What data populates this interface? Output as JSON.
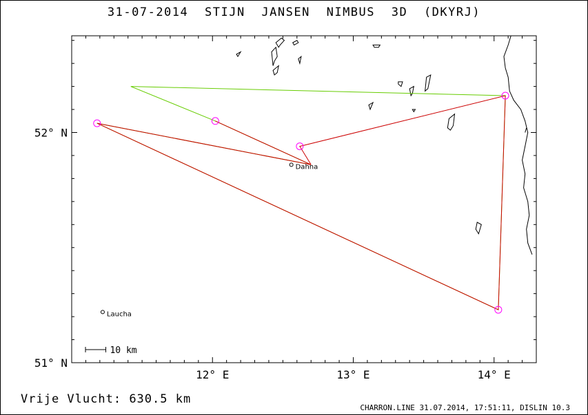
{
  "header": {
    "date": "31-07-2014",
    "pilot": "STIJN JANSEN",
    "glider": "NIMBUS 3D (DKYRJ)"
  },
  "map": {
    "lon_range": [
      11.0,
      14.3
    ],
    "lat_range": [
      51.0,
      52.42
    ],
    "y_ticks": [
      {
        "lat": 52.0,
        "label": "52° N"
      },
      {
        "lat": 51.0,
        "label": "51° N"
      }
    ],
    "x_ticks": [
      {
        "lon": 12.0,
        "label": "12° E"
      },
      {
        "lon": 13.0,
        "label": "13° E"
      },
      {
        "lon": 14.0,
        "label": "14° E"
      }
    ],
    "colors": {
      "track": "#0000cc",
      "task_red": "#cc0000",
      "task_green": "#66cc00",
      "turnpoint": "#ff00ff",
      "border": "#000000"
    },
    "towns": [
      {
        "name": "Dahna",
        "lon": 12.56,
        "lat": 51.86
      },
      {
        "name": "Laucha",
        "lon": 11.22,
        "lat": 51.22
      }
    ],
    "turnpoints": [
      {
        "lon": 11.18,
        "lat": 52.04
      },
      {
        "lon": 12.02,
        "lat": 52.05
      },
      {
        "lon": 12.62,
        "lat": 51.94
      },
      {
        "lon": 14.08,
        "lat": 52.16
      },
      {
        "lon": 14.03,
        "lat": 51.23
      }
    ],
    "red_route": [
      [
        12.7,
        51.86
      ],
      [
        12.62,
        51.94
      ],
      [
        14.08,
        52.16
      ],
      [
        14.03,
        51.23
      ],
      [
        11.18,
        52.04
      ],
      [
        12.7,
        51.86
      ],
      [
        12.02,
        52.05
      ],
      [
        12.7,
        51.86
      ]
    ],
    "green_route": [
      [
        12.7,
        51.86
      ],
      [
        11.18,
        52.04
      ],
      [
        14.03,
        51.23
      ],
      [
        14.08,
        52.16
      ],
      [
        11.42,
        52.2
      ],
      [
        12.02,
        52.05
      ],
      [
        12.7,
        51.86
      ]
    ],
    "scale_label": "10 km",
    "border_segments": [
      [
        [
          14.12,
          52.42
        ],
        [
          14.1,
          52.38
        ],
        [
          14.07,
          52.33
        ],
        [
          14.08,
          52.28
        ],
        [
          14.1,
          52.24
        ],
        [
          14.11,
          52.18
        ],
        [
          14.14,
          52.14
        ],
        [
          14.19,
          52.1
        ],
        [
          14.22,
          52.05
        ],
        [
          14.24,
          52.0
        ],
        [
          14.22,
          51.94
        ],
        [
          14.2,
          51.88
        ],
        [
          14.22,
          51.82
        ],
        [
          14.21,
          51.76
        ],
        [
          14.24,
          51.7
        ],
        [
          14.25,
          51.64
        ],
        [
          14.23,
          51.58
        ],
        [
          14.24,
          51.52
        ],
        [
          14.27,
          51.47
        ]
      ],
      [
        [
          14.22,
          52.0
        ],
        [
          14.23,
          52.02
        ]
      ]
    ],
    "lakes": [
      [
        [
          12.45,
          52.39
        ],
        [
          12.49,
          52.41
        ],
        [
          12.51,
          52.4
        ],
        [
          12.48,
          52.38
        ],
        [
          12.47,
          52.37
        ]
      ],
      [
        [
          12.42,
          52.35
        ],
        [
          12.45,
          52.37
        ],
        [
          12.46,
          52.33
        ],
        [
          12.44,
          52.31
        ],
        [
          12.43,
          52.29
        ]
      ],
      [
        [
          12.43,
          52.27
        ],
        [
          12.47,
          52.29
        ],
        [
          12.46,
          52.26
        ],
        [
          12.44,
          52.25
        ]
      ],
      [
        [
          12.57,
          52.39
        ],
        [
          12.6,
          52.4
        ],
        [
          12.61,
          52.39
        ],
        [
          12.58,
          52.38
        ]
      ],
      [
        [
          13.14,
          52.38
        ],
        [
          13.19,
          52.38
        ],
        [
          13.18,
          52.37
        ],
        [
          13.15,
          52.37
        ]
      ],
      [
        [
          13.32,
          52.22
        ],
        [
          13.35,
          52.22
        ],
        [
          13.34,
          52.2
        ],
        [
          13.32,
          52.21
        ]
      ],
      [
        [
          13.4,
          52.19
        ],
        [
          13.43,
          52.2
        ],
        [
          13.42,
          52.17
        ],
        [
          13.41,
          52.16
        ]
      ],
      [
        [
          13.52,
          52.24
        ],
        [
          13.55,
          52.25
        ],
        [
          13.53,
          52.19
        ],
        [
          13.51,
          52.18
        ]
      ],
      [
        [
          13.11,
          52.12
        ],
        [
          13.14,
          52.13
        ],
        [
          13.12,
          52.1
        ]
      ],
      [
        [
          13.42,
          52.1
        ],
        [
          13.44,
          52.1
        ],
        [
          13.43,
          52.09
        ]
      ],
      [
        [
          13.68,
          52.06
        ],
        [
          13.72,
          52.08
        ],
        [
          13.71,
          52.03
        ],
        [
          13.69,
          52.01
        ],
        [
          13.67,
          52.02
        ]
      ],
      [
        [
          13.88,
          51.61
        ],
        [
          13.91,
          51.6
        ],
        [
          13.89,
          51.56
        ],
        [
          13.87,
          51.58
        ]
      ],
      [
        [
          12.17,
          52.34
        ],
        [
          12.2,
          52.35
        ],
        [
          12.18,
          52.33
        ]
      ],
      [
        [
          12.61,
          52.32
        ],
        [
          12.63,
          52.33
        ],
        [
          12.62,
          52.3
        ]
      ]
    ]
  },
  "scale_bar": {
    "km": 10
  },
  "summary": {
    "label": "Vrije Vlucht:",
    "value": "630.5 km"
  },
  "footer": "CHARRON.LINE 31.07.2014, 17:51:11, DISLIN 10.3"
}
